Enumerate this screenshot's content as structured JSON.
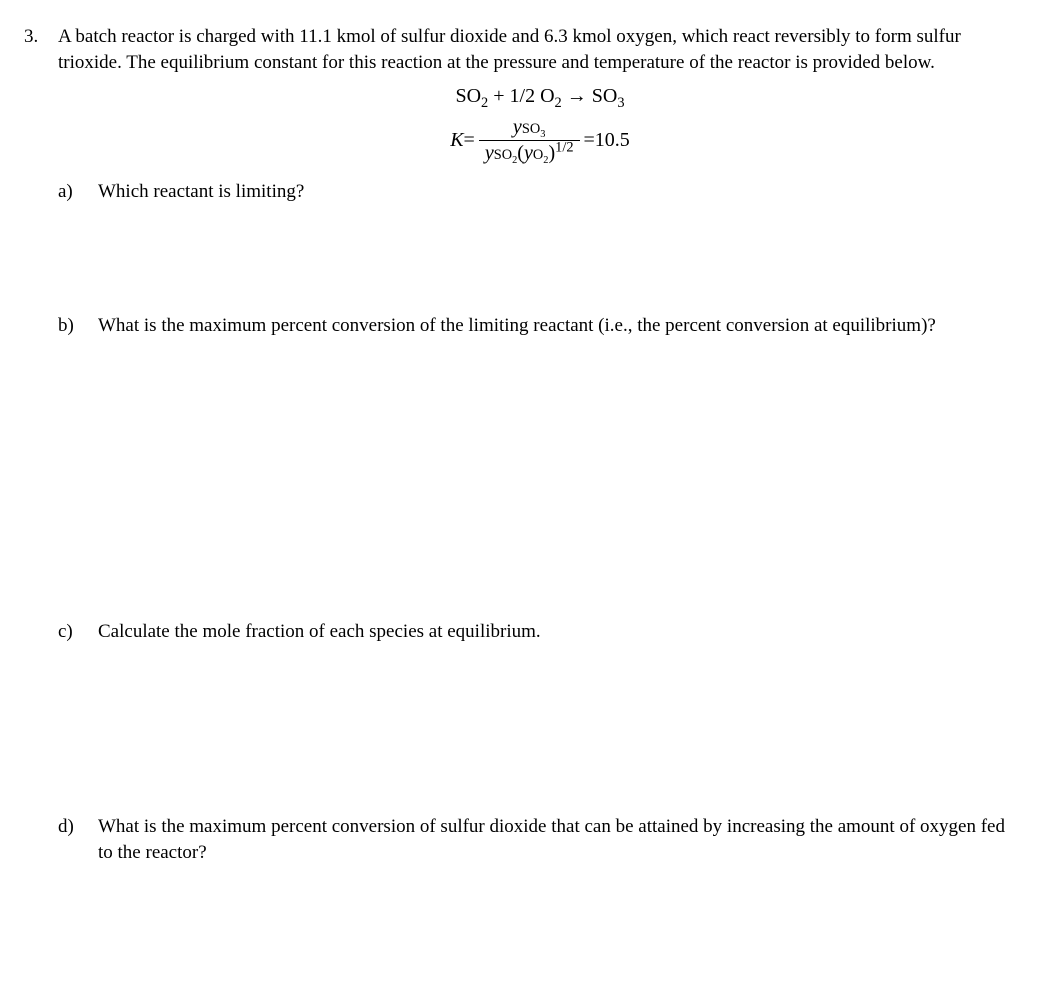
{
  "problem": {
    "number": "3.",
    "intro": "A batch reactor is charged with 11.1 kmol of sulfur dioxide and 6.3 kmol oxygen, which react reversibly to form sulfur trioxide. The equilibrium constant for this reaction at the pressure and temperature of the reactor is provided below.",
    "reaction": {
      "lhs_species1": "SO",
      "lhs_sub1": "2",
      "plus": " + ",
      "coef": "1/2 ",
      "lhs_species2": "O",
      "lhs_sub2": "2",
      "arrow": " → ",
      "rhs_species": "SO",
      "rhs_sub": "3"
    },
    "equilibrium": {
      "K_var": "K",
      "equals1": " = ",
      "num_y": "y",
      "num_sub": "SO",
      "num_sub2": "3",
      "den_y1": "y",
      "den_sub1a": "SO",
      "den_sub1b": "2",
      "den_open": "(",
      "den_y2": "y",
      "den_sub2a": "O",
      "den_sub2b": "2",
      "den_close": ")",
      "den_exp": "1/2",
      "equals2": " = ",
      "value": "10.5"
    },
    "parts": {
      "a": {
        "label": "a)",
        "text": "Which reactant is limiting?"
      },
      "b": {
        "label": "b)",
        "text": "What is the maximum percent conversion of the limiting reactant (i.e., the percent conversion at equilibrium)?"
      },
      "c": {
        "label": "c)",
        "text": "Calculate the mole fraction of each species at equilibrium."
      },
      "d": {
        "label": "d)",
        "text": "What is the maximum percent conversion of sulfur dioxide that can be attained by increasing the amount of oxygen fed to the reactor?"
      }
    }
  },
  "style": {
    "background_color": "#ffffff",
    "text_color": "#000000",
    "font_family": "Times New Roman",
    "body_fontsize": 19,
    "equation_fontsize": 20
  }
}
